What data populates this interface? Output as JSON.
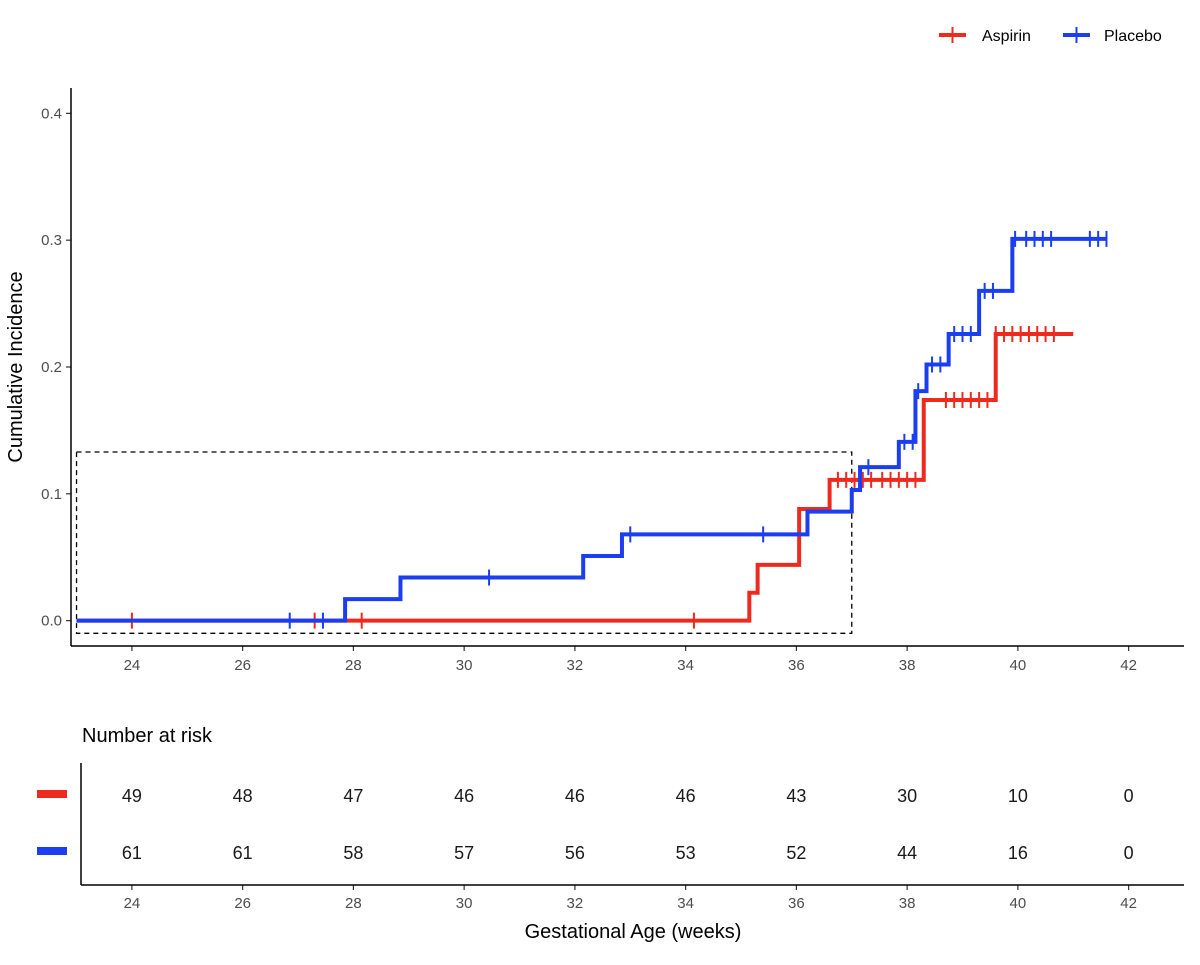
{
  "chart_data": {
    "type": "line",
    "subtype": "step",
    "xlabel": "Gestational Age (weeks)",
    "ylabel": "Cumulative Incidence",
    "xlim": [
      22.9,
      43
    ],
    "ylim": [
      -0.02,
      0.42
    ],
    "x_ticks": [
      24,
      26,
      28,
      30,
      32,
      34,
      36,
      38,
      40,
      42
    ],
    "y_ticks": [
      0.0,
      0.1,
      0.2,
      0.3,
      0.4
    ],
    "y_tick_labels": [
      "0.0",
      "0.1",
      "0.2",
      "0.3",
      "0.4"
    ],
    "legend": {
      "position": "top-right",
      "entries": [
        "Aspirin",
        "Placebo"
      ]
    },
    "series": [
      {
        "name": "Aspirin",
        "color": "#ee2a1f",
        "steps": [
          [
            23.0,
            0.0
          ],
          [
            35.15,
            0.022
          ],
          [
            35.3,
            0.044
          ],
          [
            36.05,
            0.088
          ],
          [
            36.6,
            0.111
          ],
          [
            38.3,
            0.174
          ],
          [
            39.6,
            0.226
          ],
          [
            41.0,
            0.226
          ]
        ],
        "censor_x": [
          24.0,
          27.3,
          28.15,
          34.15,
          36.75,
          36.9,
          37.05,
          37.2,
          37.35,
          37.55,
          37.7,
          37.85,
          38.0,
          38.15,
          38.7,
          38.85,
          39.0,
          39.15,
          39.3,
          39.45,
          39.6,
          39.75,
          39.9,
          40.05,
          40.2,
          40.35,
          40.5,
          40.65
        ],
        "risk": [
          49,
          48,
          47,
          46,
          46,
          46,
          43,
          30,
          10,
          0
        ]
      },
      {
        "name": "Placebo",
        "color": "#1a3ef0",
        "steps": [
          [
            23.0,
            0.0
          ],
          [
            27.85,
            0.017
          ],
          [
            28.85,
            0.034
          ],
          [
            32.15,
            0.051
          ],
          [
            32.85,
            0.068
          ],
          [
            36.2,
            0.086
          ],
          [
            37.0,
            0.103
          ],
          [
            37.15,
            0.121
          ],
          [
            37.85,
            0.141
          ],
          [
            38.15,
            0.181
          ],
          [
            38.35,
            0.202
          ],
          [
            38.75,
            0.226
          ],
          [
            39.3,
            0.26
          ],
          [
            39.9,
            0.301
          ],
          [
            41.6,
            0.301
          ]
        ],
        "censor_x": [
          26.85,
          27.45,
          30.45,
          33.0,
          35.4,
          37.3,
          37.95,
          38.1,
          38.2,
          38.45,
          38.6,
          38.85,
          39.0,
          39.15,
          39.4,
          39.55,
          39.95,
          40.15,
          40.3,
          40.45,
          40.6,
          41.3,
          41.45,
          41.6
        ],
        "risk": [
          61,
          61,
          58,
          57,
          56,
          53,
          52,
          44,
          16,
          0
        ]
      }
    ],
    "annotation_box": {
      "x": [
        23.0,
        37.0
      ],
      "y": [
        -0.01,
        0.133
      ],
      "style": "dashed"
    }
  },
  "risk_table": {
    "title": "Number at risk",
    "x_ticks": [
      24,
      26,
      28,
      30,
      32,
      34,
      36,
      38,
      40,
      42
    ],
    "xlabel": "Gestational Age (weeks)"
  }
}
